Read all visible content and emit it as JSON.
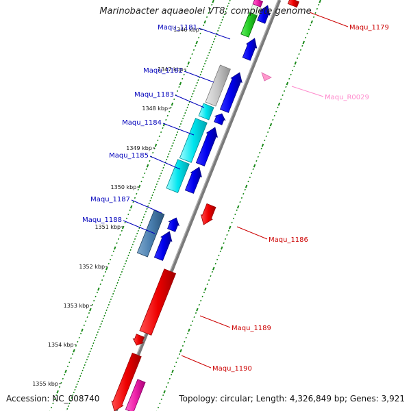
{
  "title": "Marinobacter aquaeolei VT8, complete genome",
  "footer": {
    "accession": "Accession: NC_008740",
    "topology": "Topology: circular; Length: 4,326,849 bp; Genes: 3,921"
  },
  "colors": {
    "forward": "#0000ee",
    "reverse": "#ee0000",
    "backbone": "#777777",
    "tick": "#1a8a1a",
    "rna": "#ff88cc",
    "label_forward": "#0000bb",
    "label_reverse": "#cc0000",
    "label_rna": "#ff88cc"
  },
  "kbp_labels": [
    "1346 kbp",
    "1347 kbp",
    "1348 kbp",
    "1349 kbp",
    "1350 kbp",
    "1351 kbp",
    "1352 kbp",
    "1353 kbp",
    "1354 kbp",
    "1355 kbp"
  ],
  "gene_labels_left": [
    {
      "text": "Maqu_1181"
    },
    {
      "text": "Maqu_1182"
    },
    {
      "text": "Maqu_1183"
    },
    {
      "text": "Maqu_1184"
    },
    {
      "text": "Maqu_1185"
    },
    {
      "text": "Maqu_1187"
    },
    {
      "text": "Maqu_1188"
    }
  ],
  "gene_labels_right": [
    {
      "text": "Maqu_1179"
    },
    {
      "text": "Maqu_R0029"
    },
    {
      "text": "Maqu_1186"
    },
    {
      "text": "Maqu_1189"
    },
    {
      "text": "Maqu_1190"
    }
  ]
}
